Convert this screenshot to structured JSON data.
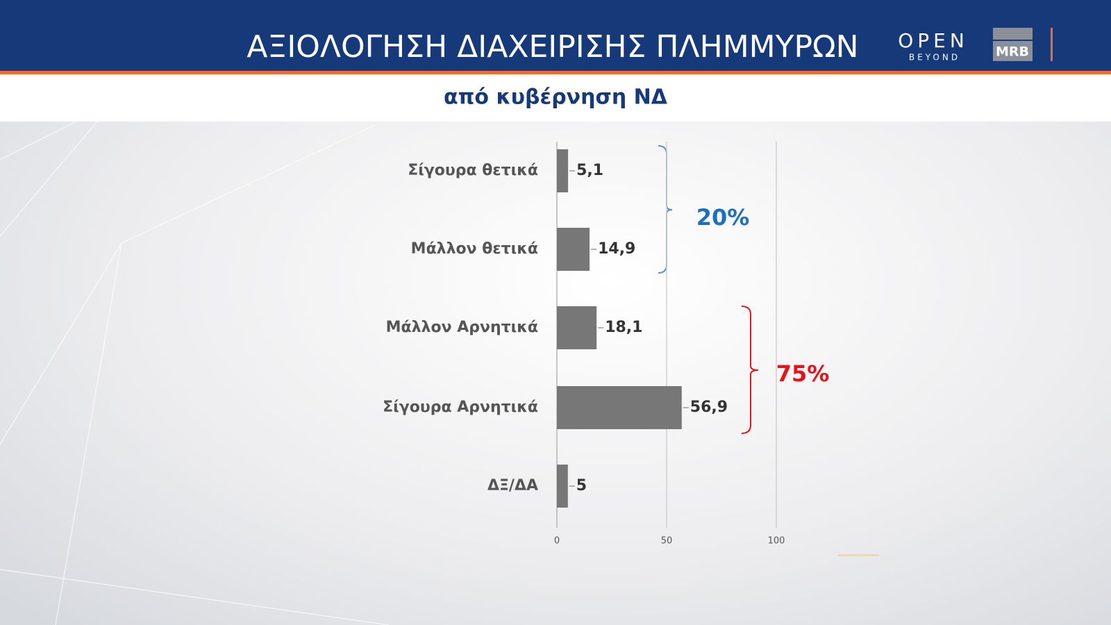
{
  "chart_data": {
    "type": "barh",
    "title": "ΑΞΙΟΛΟΓΗΣΗ ΔΙΑΧΕΙΡΙΣΗΣ ΠΛΗΜΜΥΡΩΝ",
    "subtitle": "από κυβέρνηση ΝΔ",
    "categories": [
      "Σίγουρα θετικά",
      "Μάλλον θετικά",
      "Μάλλον Αρνητικά",
      "Σίγουρα Αρνητικά",
      "ΔΞ/ΔΑ"
    ],
    "values": [
      5.1,
      14.9,
      18.1,
      56.9,
      5
    ],
    "value_labels": [
      "5,1",
      "14,9",
      "18,1",
      "56,9",
      "5"
    ],
    "color": "#777777",
    "xlim": [
      0,
      100
    ],
    "xticks": [
      0,
      50,
      100
    ],
    "grid": true,
    "annotations": [
      {
        "text": "20%",
        "color": "#1f6fbf"
      },
      {
        "text": "75%",
        "color": "#e3141b"
      }
    ]
  },
  "logos": {
    "channel": "OPEN",
    "channel_sub": "BEYOND",
    "pollster": "MRB"
  }
}
